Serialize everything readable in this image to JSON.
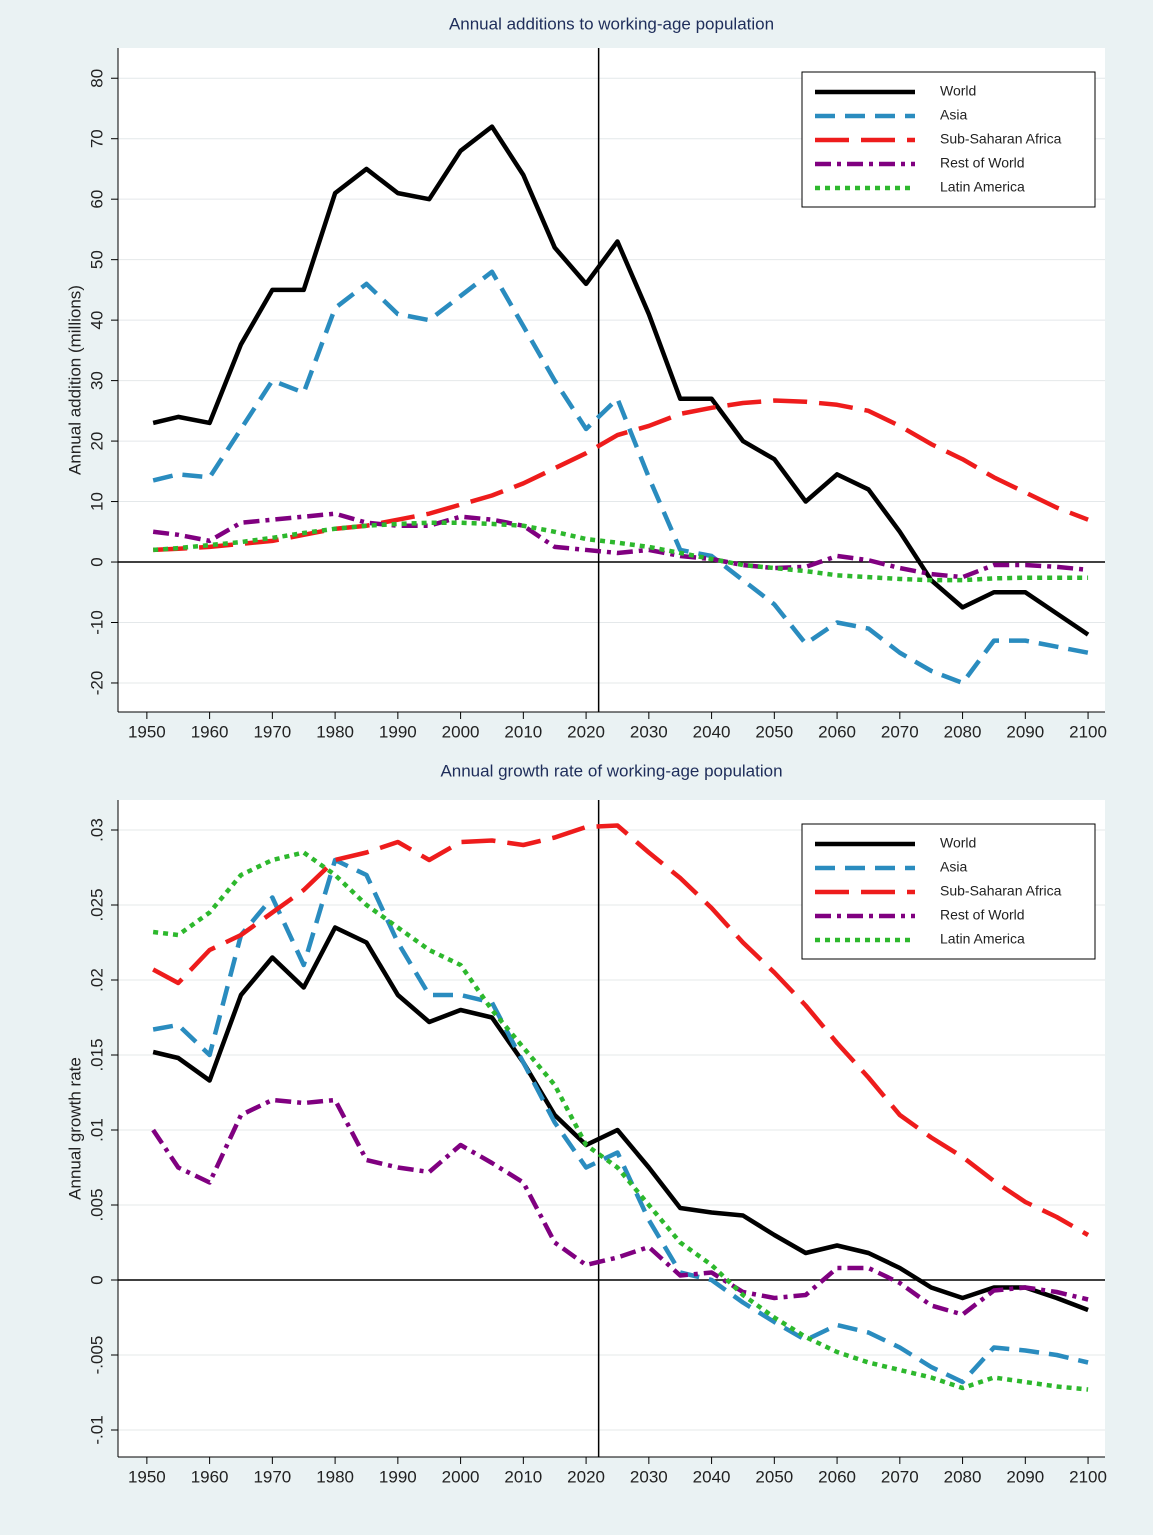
{
  "chart_data": [
    {
      "type": "line",
      "title": "Annual additions to working-age population",
      "y_label": "Annual addition (millions)",
      "x": [
        1951,
        1955,
        1960,
        1965,
        1970,
        1975,
        1980,
        1985,
        1990,
        1995,
        2000,
        2005,
        2010,
        2015,
        2020,
        2025,
        2030,
        2035,
        2040,
        2045,
        2050,
        2055,
        2060,
        2065,
        2070,
        2075,
        2080,
        2085,
        2090,
        2095,
        2100
      ],
      "xlim": [
        1945.4,
        2102.7
      ],
      "xticks": [
        1950,
        1960,
        1970,
        1980,
        1990,
        2000,
        2010,
        2020,
        2030,
        2040,
        2050,
        2060,
        2070,
        2080,
        2090,
        2100
      ],
      "ylim": [
        -24.8,
        85
      ],
      "yticks": [
        -20,
        -10,
        0,
        10,
        20,
        30,
        40,
        50,
        60,
        70,
        80
      ],
      "grid": true,
      "legend": "top-right",
      "xline": 2022,
      "yline": 0,
      "series": [
        {
          "name": "World",
          "color": "#000000",
          "line_style": "solid",
          "values": [
            23,
            24,
            23,
            36,
            45,
            45,
            61,
            65,
            61,
            60,
            68,
            72,
            64,
            52,
            46,
            53,
            41,
            27,
            27,
            20,
            17,
            10,
            14.5,
            12,
            5,
            -3,
            -7.5,
            -5,
            -5,
            -8.5,
            -12
          ]
        },
        {
          "name": "Asia",
          "color": "#2a8cbf",
          "line_style": "dash",
          "values": [
            13.5,
            14.5,
            14,
            22,
            30,
            28,
            42,
            46,
            41,
            40,
            44,
            48,
            39,
            30,
            22,
            27,
            14,
            2,
            1,
            -3,
            -7,
            -13.5,
            -10,
            -11,
            -15,
            -18,
            -20,
            -13,
            -13,
            -14,
            -15
          ]
        },
        {
          "name": "Sub-Saharan Africa",
          "color": "#ee1c1c",
          "line_style": "longdash",
          "values": [
            2,
            2.2,
            2.5,
            3,
            3.5,
            4.5,
            5.5,
            6,
            7,
            8,
            9.5,
            11,
            13,
            15.5,
            18,
            21,
            22.5,
            24.5,
            25.5,
            26.3,
            26.7,
            26.5,
            26,
            25,
            22.5,
            19.5,
            17,
            14,
            11.5,
            9,
            7
          ]
        },
        {
          "name": "Rest of World",
          "color": "#800080",
          "line_style": "dashdot",
          "values": [
            5,
            4.5,
            3.5,
            6.5,
            7,
            7.5,
            8,
            6.5,
            6,
            6,
            7.5,
            7,
            6,
            2.5,
            2,
            1.5,
            2,
            1,
            0.5,
            -0.5,
            -1,
            -0.8,
            1,
            0.3,
            -1,
            -2,
            -2.5,
            -0.5,
            -0.5,
            -0.8,
            -1.3
          ]
        },
        {
          "name": "Latin America",
          "color": "#2db82d",
          "line_style": "dot",
          "values": [
            2,
            2.3,
            2.8,
            3.3,
            4,
            4.8,
            5.5,
            6,
            6.3,
            6.5,
            6.5,
            6.3,
            6,
            5,
            3.8,
            3.2,
            2.5,
            1.5,
            0.5,
            -0.5,
            -1,
            -1.5,
            -2.2,
            -2.5,
            -2.8,
            -3,
            -3,
            -2.7,
            -2.6,
            -2.6,
            -2.6
          ]
        }
      ]
    },
    {
      "type": "line",
      "title": "Annual growth rate of working-age population",
      "y_label": "Annual growth rate",
      "x": [
        1951,
        1955,
        1960,
        1965,
        1970,
        1975,
        1980,
        1985,
        1990,
        1995,
        2000,
        2005,
        2010,
        2015,
        2020,
        2025,
        2030,
        2035,
        2040,
        2045,
        2050,
        2055,
        2060,
        2065,
        2070,
        2075,
        2080,
        2085,
        2090,
        2095,
        2100
      ],
      "xlim": [
        1945.4,
        2102.7
      ],
      "xticks": [
        1950,
        1960,
        1970,
        1980,
        1990,
        2000,
        2010,
        2020,
        2030,
        2040,
        2050,
        2060,
        2070,
        2080,
        2090,
        2100
      ],
      "ylim": [
        -0.0118,
        0.032
      ],
      "yticks": [
        {
          "value": -0.01,
          "label": "-.01"
        },
        {
          "value": -0.005,
          "label": "-.005"
        },
        0,
        {
          "value": 0.005,
          "label": ".005"
        },
        {
          "value": 0.01,
          "label": ".01"
        },
        {
          "value": 0.015,
          "label": ".015"
        },
        {
          "value": 0.02,
          "label": ".02"
        },
        {
          "value": 0.025,
          "label": ".025"
        },
        {
          "value": 0.03,
          "label": ".03"
        }
      ],
      "grid": true,
      "legend": "top-right",
      "xline": 2022,
      "yline": 0,
      "series": [
        {
          "name": "World",
          "color": "#000000",
          "line_style": "solid",
          "values": [
            0.0152,
            0.0148,
            0.0133,
            0.019,
            0.0215,
            0.0195,
            0.0235,
            0.0225,
            0.019,
            0.0172,
            0.018,
            0.0175,
            0.0145,
            0.011,
            0.009,
            0.01,
            0.0075,
            0.0048,
            0.0045,
            0.0043,
            0.003,
            0.0018,
            0.0023,
            0.0018,
            0.0008,
            -0.0005,
            -0.0012,
            -0.0005,
            -0.0005,
            -0.0012,
            -0.002
          ]
        },
        {
          "name": "Asia",
          "color": "#2a8cbf",
          "line_style": "dash",
          "values": [
            0.0167,
            0.017,
            0.015,
            0.023,
            0.0255,
            0.021,
            0.028,
            0.027,
            0.0225,
            0.019,
            0.019,
            0.0185,
            0.0145,
            0.0105,
            0.0075,
            0.0085,
            0.004,
            0.0005,
            0,
            -0.0015,
            -0.0028,
            -0.004,
            -0.003,
            -0.0035,
            -0.0045,
            -0.0058,
            -0.0068,
            -0.0045,
            -0.0047,
            -0.005,
            -0.0055
          ]
        },
        {
          "name": "Sub-Saharan Africa",
          "color": "#ee1c1c",
          "line_style": "longdash",
          "values": [
            0.0207,
            0.0198,
            0.022,
            0.023,
            0.0245,
            0.026,
            0.028,
            0.0285,
            0.0292,
            0.028,
            0.0292,
            0.0293,
            0.029,
            0.0295,
            0.0302,
            0.0303,
            0.0285,
            0.0268,
            0.0248,
            0.0225,
            0.0205,
            0.0183,
            0.0158,
            0.0135,
            0.011,
            0.0095,
            0.0082,
            0.0066,
            0.0052,
            0.0042,
            0.003
          ]
        },
        {
          "name": "Rest of World",
          "color": "#800080",
          "line_style": "dashdot",
          "values": [
            0.01,
            0.0075,
            0.0065,
            0.011,
            0.012,
            0.0118,
            0.012,
            0.008,
            0.0075,
            0.0072,
            0.009,
            0.0078,
            0.0065,
            0.0025,
            0.001,
            0.0015,
            0.0022,
            0.0003,
            0.0005,
            -0.0008,
            -0.0012,
            -0.001,
            0.0008,
            0.0008,
            -0.0002,
            -0.0017,
            -0.0023,
            -0.0007,
            -0.0005,
            -0.0008,
            -0.0013
          ]
        },
        {
          "name": "Latin America",
          "color": "#2db82d",
          "line_style": "dot",
          "values": [
            0.0232,
            0.023,
            0.0245,
            0.027,
            0.028,
            0.0285,
            0.027,
            0.025,
            0.0235,
            0.022,
            0.021,
            0.018,
            0.0155,
            0.013,
            0.009,
            0.0075,
            0.005,
            0.0025,
            0.001,
            -0.001,
            -0.0025,
            -0.0038,
            -0.0048,
            -0.0055,
            -0.006,
            -0.0065,
            -0.0072,
            -0.0065,
            -0.0068,
            -0.0071,
            -0.0073
          ]
        }
      ]
    }
  ]
}
